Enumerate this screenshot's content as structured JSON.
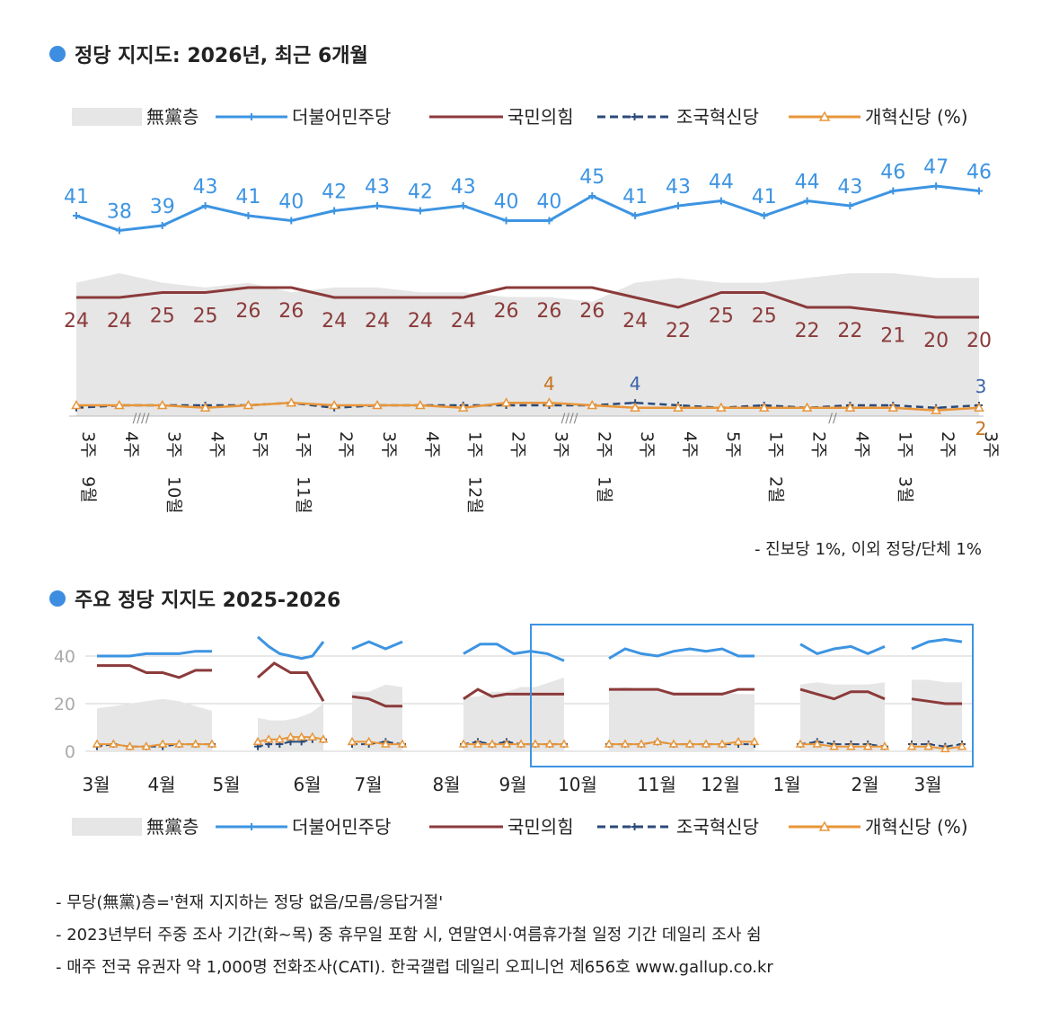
{
  "colors": {
    "nonpartisan": "#e6e6e6",
    "democratic": "#3d94e2",
    "ppp": "#8b3a3a",
    "rebuilding": "#2b4a7a",
    "reform": "#e8963a",
    "grid": "#d0d0d0",
    "highlight": "#3d94e2",
    "title_dot": "#3d8ee0"
  },
  "legend": {
    "items": [
      {
        "key": "nonpartisan",
        "label": "無黨층",
        "style": "area"
      },
      {
        "key": "democratic",
        "label": "더불어민주당",
        "style": "line-plus"
      },
      {
        "key": "ppp",
        "label": "국민의힘",
        "style": "line"
      },
      {
        "key": "rebuilding",
        "label": "조국혁신당",
        "style": "dash-plus"
      },
      {
        "key": "reform",
        "label": "개혁신당 (%)",
        "style": "line-triangle"
      }
    ]
  },
  "chart_data": [
    {
      "type": "line",
      "title": "정당 지지도: 2026년, 최근 6개월",
      "x": [
        "3주",
        "4주",
        "3주",
        "4주",
        "5주",
        "1주",
        "2주",
        "3주",
        "4주",
        "1주",
        "2주",
        "3주",
        "2주",
        "3주",
        "4주",
        "5주",
        "1주",
        "2주",
        "4주",
        "1주",
        "2주",
        "3주"
      ],
      "x_months": [
        {
          "label": "9월",
          "index": 0
        },
        {
          "label": "10월",
          "index": 2
        },
        {
          "label": "11월",
          "index": 5
        },
        {
          "label": "12월",
          "index": 9
        },
        {
          "label": "1월",
          "index": 12
        },
        {
          "label": "2월",
          "index": 16
        },
        {
          "label": "3월",
          "index": 19
        }
      ],
      "gap_markers": [
        "////",
        "////",
        "//"
      ],
      "series": [
        {
          "name": "더불어민주당",
          "values": [
            41,
            38,
            39,
            43,
            41,
            40,
            42,
            43,
            42,
            43,
            40,
            40,
            45,
            41,
            43,
            44,
            41,
            44,
            43,
            46,
            47,
            46
          ]
        },
        {
          "name": "국민의힘",
          "values": [
            24,
            24,
            25,
            25,
            26,
            26,
            24,
            24,
            24,
            24,
            26,
            26,
            26,
            24,
            22,
            25,
            25,
            22,
            22,
            21,
            20,
            20
          ]
        },
        {
          "name": "조국혁신당",
          "values": [
            2,
            3,
            3,
            3,
            3,
            4,
            2,
            3,
            3,
            3,
            3,
            3,
            3,
            4,
            3,
            2,
            3,
            2,
            3,
            3,
            2,
            3
          ]
        },
        {
          "name": "개혁신당",
          "values": [
            3,
            3,
            3,
            2,
            3,
            4,
            3,
            3,
            3,
            2,
            4,
            4,
            3,
            2,
            2,
            2,
            2,
            2,
            2,
            2,
            1,
            2
          ]
        },
        {
          "name": "無黨층",
          "values": [
            28,
            30,
            28,
            27,
            28,
            26,
            27,
            27,
            26,
            26,
            25,
            25,
            24,
            28,
            29,
            28,
            28,
            29,
            30,
            30,
            29,
            29
          ]
        }
      ],
      "extra_labels": [
        {
          "series": "개혁신당",
          "index": 11,
          "text": "4"
        },
        {
          "series": "조국혁신당",
          "index": 13,
          "text": "4"
        },
        {
          "series": "조국혁신당",
          "index": 21,
          "text": "3"
        },
        {
          "series": "개혁신당",
          "index": 21,
          "text": "2"
        }
      ],
      "note": "- 진보당 1%, 이외 정당/단체 1%"
    },
    {
      "type": "line",
      "title": "주요 정당 지지도 2025-2026",
      "yticks": [
        0,
        20,
        40
      ],
      "ylim": [
        0,
        50
      ],
      "x_months": [
        "3월",
        "4월",
        "5월",
        "6월",
        "7월",
        "8월",
        "9월",
        "10월",
        "11월",
        "12월",
        "1월",
        "2월",
        "3월"
      ],
      "segments": [
        {
          "democratic": [
            40,
            40,
            40,
            41,
            41,
            41,
            42,
            42
          ],
          "ppp": [
            36,
            36,
            36,
            33,
            33,
            31,
            34,
            34
          ],
          "rebuilding": [
            2,
            3,
            2,
            2,
            2,
            3,
            3,
            3
          ],
          "reform": [
            3,
            3,
            2,
            2,
            3,
            3,
            3,
            3
          ],
          "nonpartisan": [
            18,
            19,
            20,
            21,
            22,
            21,
            19,
            17
          ]
        },
        {
          "democratic": [
            48,
            44,
            41,
            40,
            39,
            40,
            46
          ],
          "ppp": [
            31,
            37,
            33,
            33,
            21
          ],
          "rebuilding": [
            2,
            3,
            3,
            4,
            4,
            5,
            5
          ],
          "reform": [
            4,
            5,
            5,
            6,
            6,
            6,
            5
          ],
          "nonpartisan": [
            14,
            13,
            13,
            14,
            16,
            20
          ]
        },
        {
          "democratic": [
            43,
            46,
            43,
            46
          ],
          "ppp": [
            23,
            22,
            19,
            19
          ],
          "rebuilding": [
            3,
            3,
            4,
            3
          ],
          "reform": [
            4,
            4,
            3,
            3
          ],
          "nonpartisan": [
            25,
            25,
            28,
            27
          ]
        },
        {
          "democratic": [
            41,
            45,
            45,
            41,
            42,
            41,
            38
          ],
          "ppp": [
            22,
            26,
            23,
            24,
            24,
            24,
            24,
            24
          ],
          "rebuilding": [
            3,
            4,
            3,
            4,
            3,
            3,
            3,
            3
          ],
          "reform": [
            3,
            3,
            3,
            3,
            3,
            3,
            3,
            3
          ],
          "nonpartisan": [
            23,
            23,
            25,
            25,
            27,
            27,
            29,
            31
          ]
        },
        {
          "democratic": [
            39,
            43,
            41,
            40,
            42,
            43,
            42,
            43,
            40,
            40
          ],
          "ppp": [
            26,
            26,
            26,
            26,
            24,
            24,
            24,
            24,
            26,
            26
          ],
          "rebuilding": [
            3,
            3,
            3,
            4,
            3,
            3,
            3,
            3,
            3,
            3
          ],
          "reform": [
            3,
            3,
            3,
            4,
            3,
            3,
            3,
            3,
            4,
            4
          ],
          "nonpartisan": [
            26,
            27,
            26,
            26,
            25,
            25,
            25,
            25,
            24,
            24
          ]
        },
        {
          "democratic": [
            45,
            41,
            43,
            44,
            41,
            44
          ],
          "ppp": [
            26,
            24,
            22,
            25,
            25,
            22
          ],
          "rebuilding": [
            3,
            4,
            3,
            3,
            3,
            2
          ],
          "reform": [
            3,
            3,
            2,
            2,
            2,
            2
          ],
          "nonpartisan": [
            28,
            29,
            28,
            28,
            28,
            29
          ]
        },
        {
          "democratic": [
            43,
            46,
            47,
            46
          ],
          "ppp": [
            22,
            21,
            20,
            20
          ],
          "rebuilding": [
            3,
            3,
            2,
            3
          ],
          "reform": [
            2,
            2,
            1,
            2
          ],
          "nonpartisan": [
            30,
            30,
            29,
            29
          ]
        }
      ]
    }
  ],
  "chart1": {
    "title": "정당 지지도: 2026년, 최근 6개월",
    "note": "- 진보당 1%, 이외 정당/단체 1%"
  },
  "chart2": {
    "title": "주요 정당 지지도 2025-2026"
  },
  "footnotes": [
    "- 무당(無黨)층='현재 지지하는 정당 없음/모름/응답거절'",
    "- 2023년부터 주중 조사 기간(화~목) 중 휴무일 포함 시, 연말연시·여름휴가철 일정 기간 데일리 조사 쉼",
    "- 매주 전국 유권자 약 1,000명 전화조사(CATI). 한국갤럽 데일리 오피니언 제656호 www.gallup.co.kr"
  ]
}
